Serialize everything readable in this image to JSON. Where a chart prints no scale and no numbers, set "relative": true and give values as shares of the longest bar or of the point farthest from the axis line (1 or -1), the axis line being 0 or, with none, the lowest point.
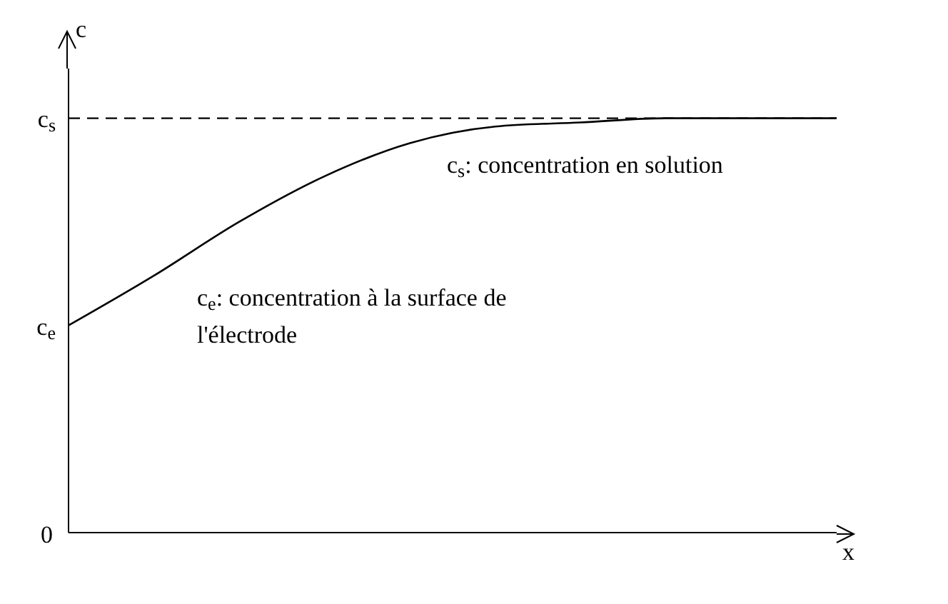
{
  "chart_data": {
    "type": "line",
    "relative": true,
    "xlabel": "x",
    "ylabel": "c",
    "categories": [
      null,
      null,
      null,
      null,
      null,
      null,
      null,
      null,
      null,
      null
    ],
    "series": [
      {
        "color": "#000000",
        "values": [
          0.5,
          0.62,
          0.75,
          0.86,
          0.94,
          0.98,
          0.99,
          1,
          1,
          1
        ]
      }
    ],
    "ref_lines": [
      {
        "axis": "y",
        "value": 1,
        "label": "c$_{s}$",
        "line_style": "dashed",
        "color": "#000000"
      }
    ],
    "annotations": [
      "0",
      "c$_{e}$",
      "c$_{s}$: concentration en solution",
      "c$_{e}$: concentration à la surface de l'électrode"
    ],
    "grid": false,
    "legend": false,
    "marker": "none",
    "line_style": "solid"
  }
}
